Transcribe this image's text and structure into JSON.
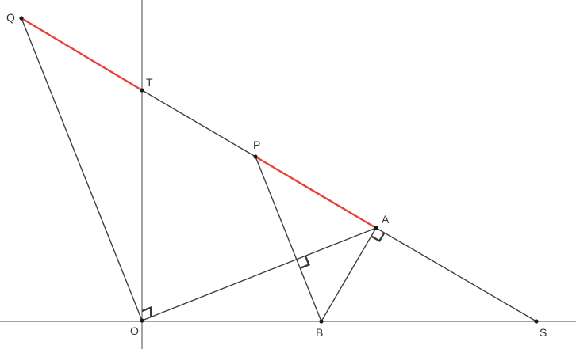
{
  "diagram": {
    "colors": {
      "line": "#3f3f3f",
      "highlight": "#e8413b",
      "point": "#1a1a1a",
      "label": "#333333"
    },
    "points": {
      "Q": {
        "label": "Q"
      },
      "T": {
        "label": "T"
      },
      "P": {
        "label": "P"
      },
      "A": {
        "label": "A"
      },
      "O": {
        "label": "O"
      },
      "B": {
        "label": "B"
      },
      "S": {
        "label": "S"
      }
    },
    "segments": [
      {
        "from": "Q",
        "to": "O",
        "highlight": false
      },
      {
        "from": "Q",
        "to": "T",
        "highlight": true
      },
      {
        "from": "T",
        "to": "P",
        "highlight": false
      },
      {
        "from": "P",
        "to": "A",
        "highlight": true
      },
      {
        "from": "A",
        "to": "S",
        "highlight": false
      },
      {
        "from": "O",
        "to": "A",
        "highlight": false
      },
      {
        "from": "P",
        "to": "B",
        "highlight": false
      },
      {
        "from": "A",
        "to": "B",
        "highlight": false
      }
    ],
    "right_angles": [
      {
        "vertex": "O",
        "between": [
          "A",
          "T"
        ]
      },
      {
        "vertex": "A",
        "between": [
          "B",
          "S"
        ]
      },
      {
        "vertex": "PB∩OA",
        "between": [
          "A",
          "B"
        ]
      }
    ]
  }
}
